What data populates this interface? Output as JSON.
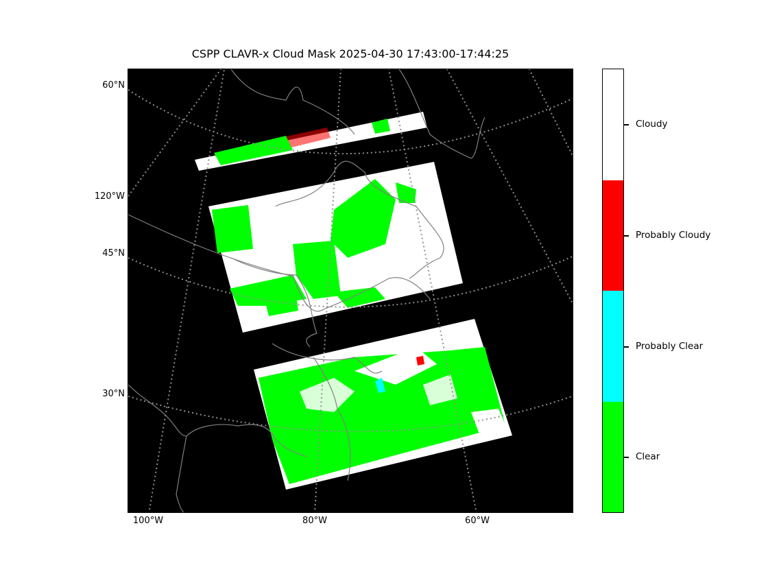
{
  "title": "CSPP CLAVR-x Cloud Mask 2025-04-30 17:43:00-17:44:25",
  "map": {
    "lat_labels": [
      "60°N",
      "120°W",
      "45°N",
      "30°N"
    ],
    "lon_labels": [
      "100°W",
      "80°W",
      "60°W"
    ],
    "gridline_color": "#909090",
    "coastline_color": "#808080",
    "background_color": "#000000"
  },
  "colorbar": {
    "categories": [
      {
        "label": "Cloudy",
        "color": "#ffffff"
      },
      {
        "label": "Probably Cloudy",
        "color": "#ff0000"
      },
      {
        "label": "Probably Clear",
        "color": "#00ffff"
      },
      {
        "label": "Clear",
        "color": "#00ff00"
      }
    ]
  }
}
